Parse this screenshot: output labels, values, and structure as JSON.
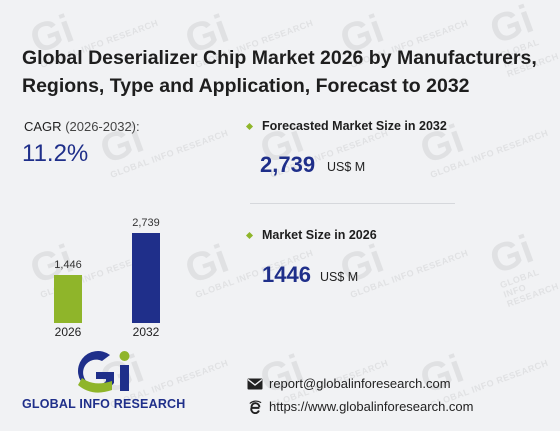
{
  "title_line1": "Global Deserializer Chip Market 2026 by Manufacturers,",
  "title_line2": "Regions, Type and Application, Forecast to 2032",
  "cagr": {
    "label": "CAGR",
    "period": "(2026-2032):",
    "value": "11.2%"
  },
  "chart_data": {
    "type": "bar",
    "categories": [
      "2026",
      "2032"
    ],
    "values": [
      1446,
      2739
    ],
    "value_labels": [
      "1,446",
      "2,739"
    ],
    "colors": [
      "#8fb52a",
      "#1f2f8a"
    ],
    "ylim": [
      0,
      2739
    ]
  },
  "forecast": {
    "label": "Forecasted Market Size in 2032",
    "value": "2,739",
    "unit": "US$ M"
  },
  "current": {
    "label": "Market Size in 2026",
    "value": "1446",
    "unit": "US$ M"
  },
  "brand": {
    "name": "GLOBAL INFO RESEARCH",
    "logo_letters": "Gi",
    "watermark_text": "GLOBAL INFO RESEARCH"
  },
  "contact": {
    "email": "report@globalinforesearch.com",
    "website": "https://www.globalinforesearch.com",
    "email_icon": "envelope-icon",
    "web_icon": "browser-e-icon"
  },
  "colors": {
    "accent_navy": "#1f2f8a",
    "accent_green": "#8fb52a",
    "background": "#f1f2f4"
  }
}
